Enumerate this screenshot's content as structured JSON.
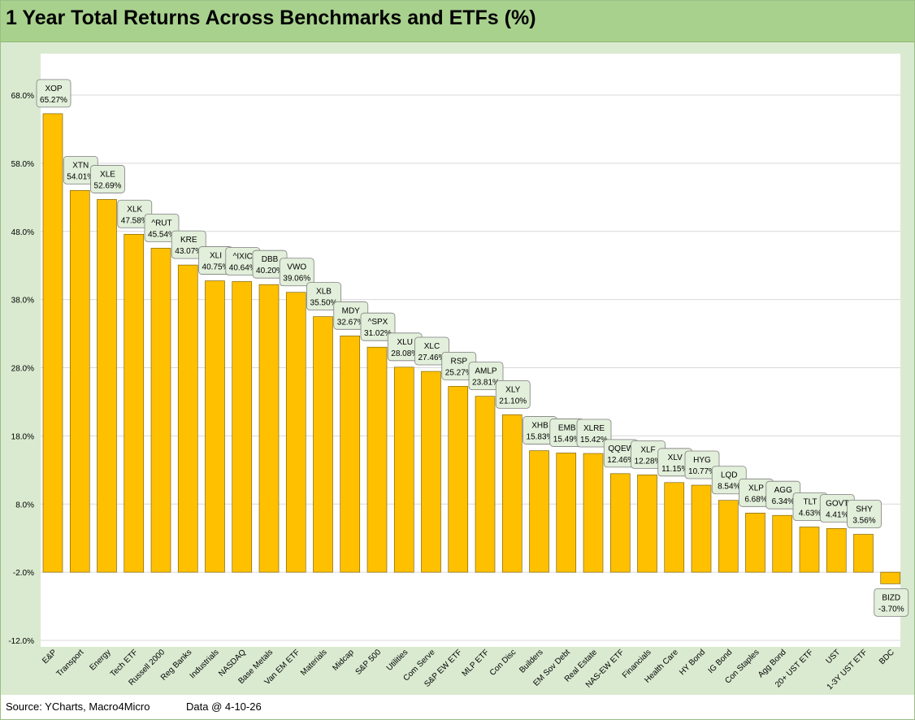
{
  "title": "1 Year Total Returns Across Benchmarks and ETFs (%)",
  "footer": {
    "source": "Source: YCharts, Macro4Micro",
    "asof": "Data @ 4-10-26"
  },
  "colors": {
    "bar": "#ffc000",
    "bar_border": "#6b5500",
    "title_bg": "#a9d18e",
    "outer_bg": "#d9ead0",
    "plot_bg": "#ffffff",
    "label_bg": "#e2efda"
  },
  "chart_data": {
    "type": "bar",
    "title": "1 Year Total Returns Across Benchmarks and ETFs (%)",
    "xlabel": "",
    "ylabel": "",
    "ylim": [
      -12,
      68
    ],
    "yticks": [
      68,
      58,
      48,
      38,
      28,
      18,
      8,
      -2,
      -12
    ],
    "ytick_labels": [
      "68.0%",
      "58.0%",
      "48.0%",
      "38.0%",
      "28.0%",
      "18.0%",
      "8.0%",
      "-2.0%",
      "-12.0%"
    ],
    "bar_baseline": -2,
    "grid": true,
    "categories": [
      "E&P",
      "Transport",
      "Energy",
      "Tech ETF",
      "Russell 2000",
      "Reg Banks",
      "Industrials",
      "NASDAQ",
      "Base Metals",
      "Van EM ETF",
      "Materials",
      "Midcap",
      "S&P 500",
      "Utilities",
      "Com Serve",
      "S&P EW ETF",
      "MLP ETF",
      "Con Disc",
      "Builders",
      "EM Sov Debt",
      "Real Estate",
      "NAS-EW ETF",
      "Financials",
      "Health Care",
      "HY Bond",
      "IG Bond",
      "Con Staples",
      "Agg Bond",
      "20+ UST ETF",
      "UST",
      "1-3Y UST ETF",
      "BDC"
    ],
    "tickers": [
      "XOP",
      "XTN",
      "XLE",
      "XLK",
      "^RUT",
      "KRE",
      "XLI",
      "^IXIC",
      "DBB",
      "VWO",
      "XLB",
      "MDY",
      "^SPX",
      "XLU",
      "XLC",
      "RSP",
      "AMLP",
      "XLY",
      "XHB",
      "EMB",
      "XLRE",
      "QQEW",
      "XLF",
      "XLV",
      "HYG",
      "LQD",
      "XLP",
      "AGG",
      "TLT",
      "GOVT",
      "SHY",
      "BIZD"
    ],
    "value_labels": [
      "65.27%",
      "54.01%",
      "52.69%",
      "47.58%",
      "45.54%",
      "43.07%",
      "40.75%",
      "40.64%",
      "40.20%",
      "39.06%",
      "35.50%",
      "32.67%",
      "31.02%",
      "28.08%",
      "27.46%",
      "25.27%",
      "23.81%",
      "21.10%",
      "15.83%",
      "15.49%",
      "15.42%",
      "12.46%",
      "12.28%",
      "11.15%",
      "10.77%",
      "8.54%",
      "6.68%",
      "6.34%",
      "4.63%",
      "4.41%",
      "3.56%",
      "-3.70%"
    ],
    "values": [
      65.27,
      54.01,
      52.69,
      47.58,
      45.54,
      43.07,
      40.75,
      40.64,
      40.2,
      39.06,
      35.5,
      32.67,
      31.02,
      28.08,
      27.46,
      25.27,
      23.81,
      21.1,
      15.83,
      15.49,
      15.42,
      12.46,
      12.28,
      11.15,
      10.77,
      8.54,
      6.68,
      6.34,
      4.63,
      4.41,
      3.56,
      -3.7
    ]
  }
}
